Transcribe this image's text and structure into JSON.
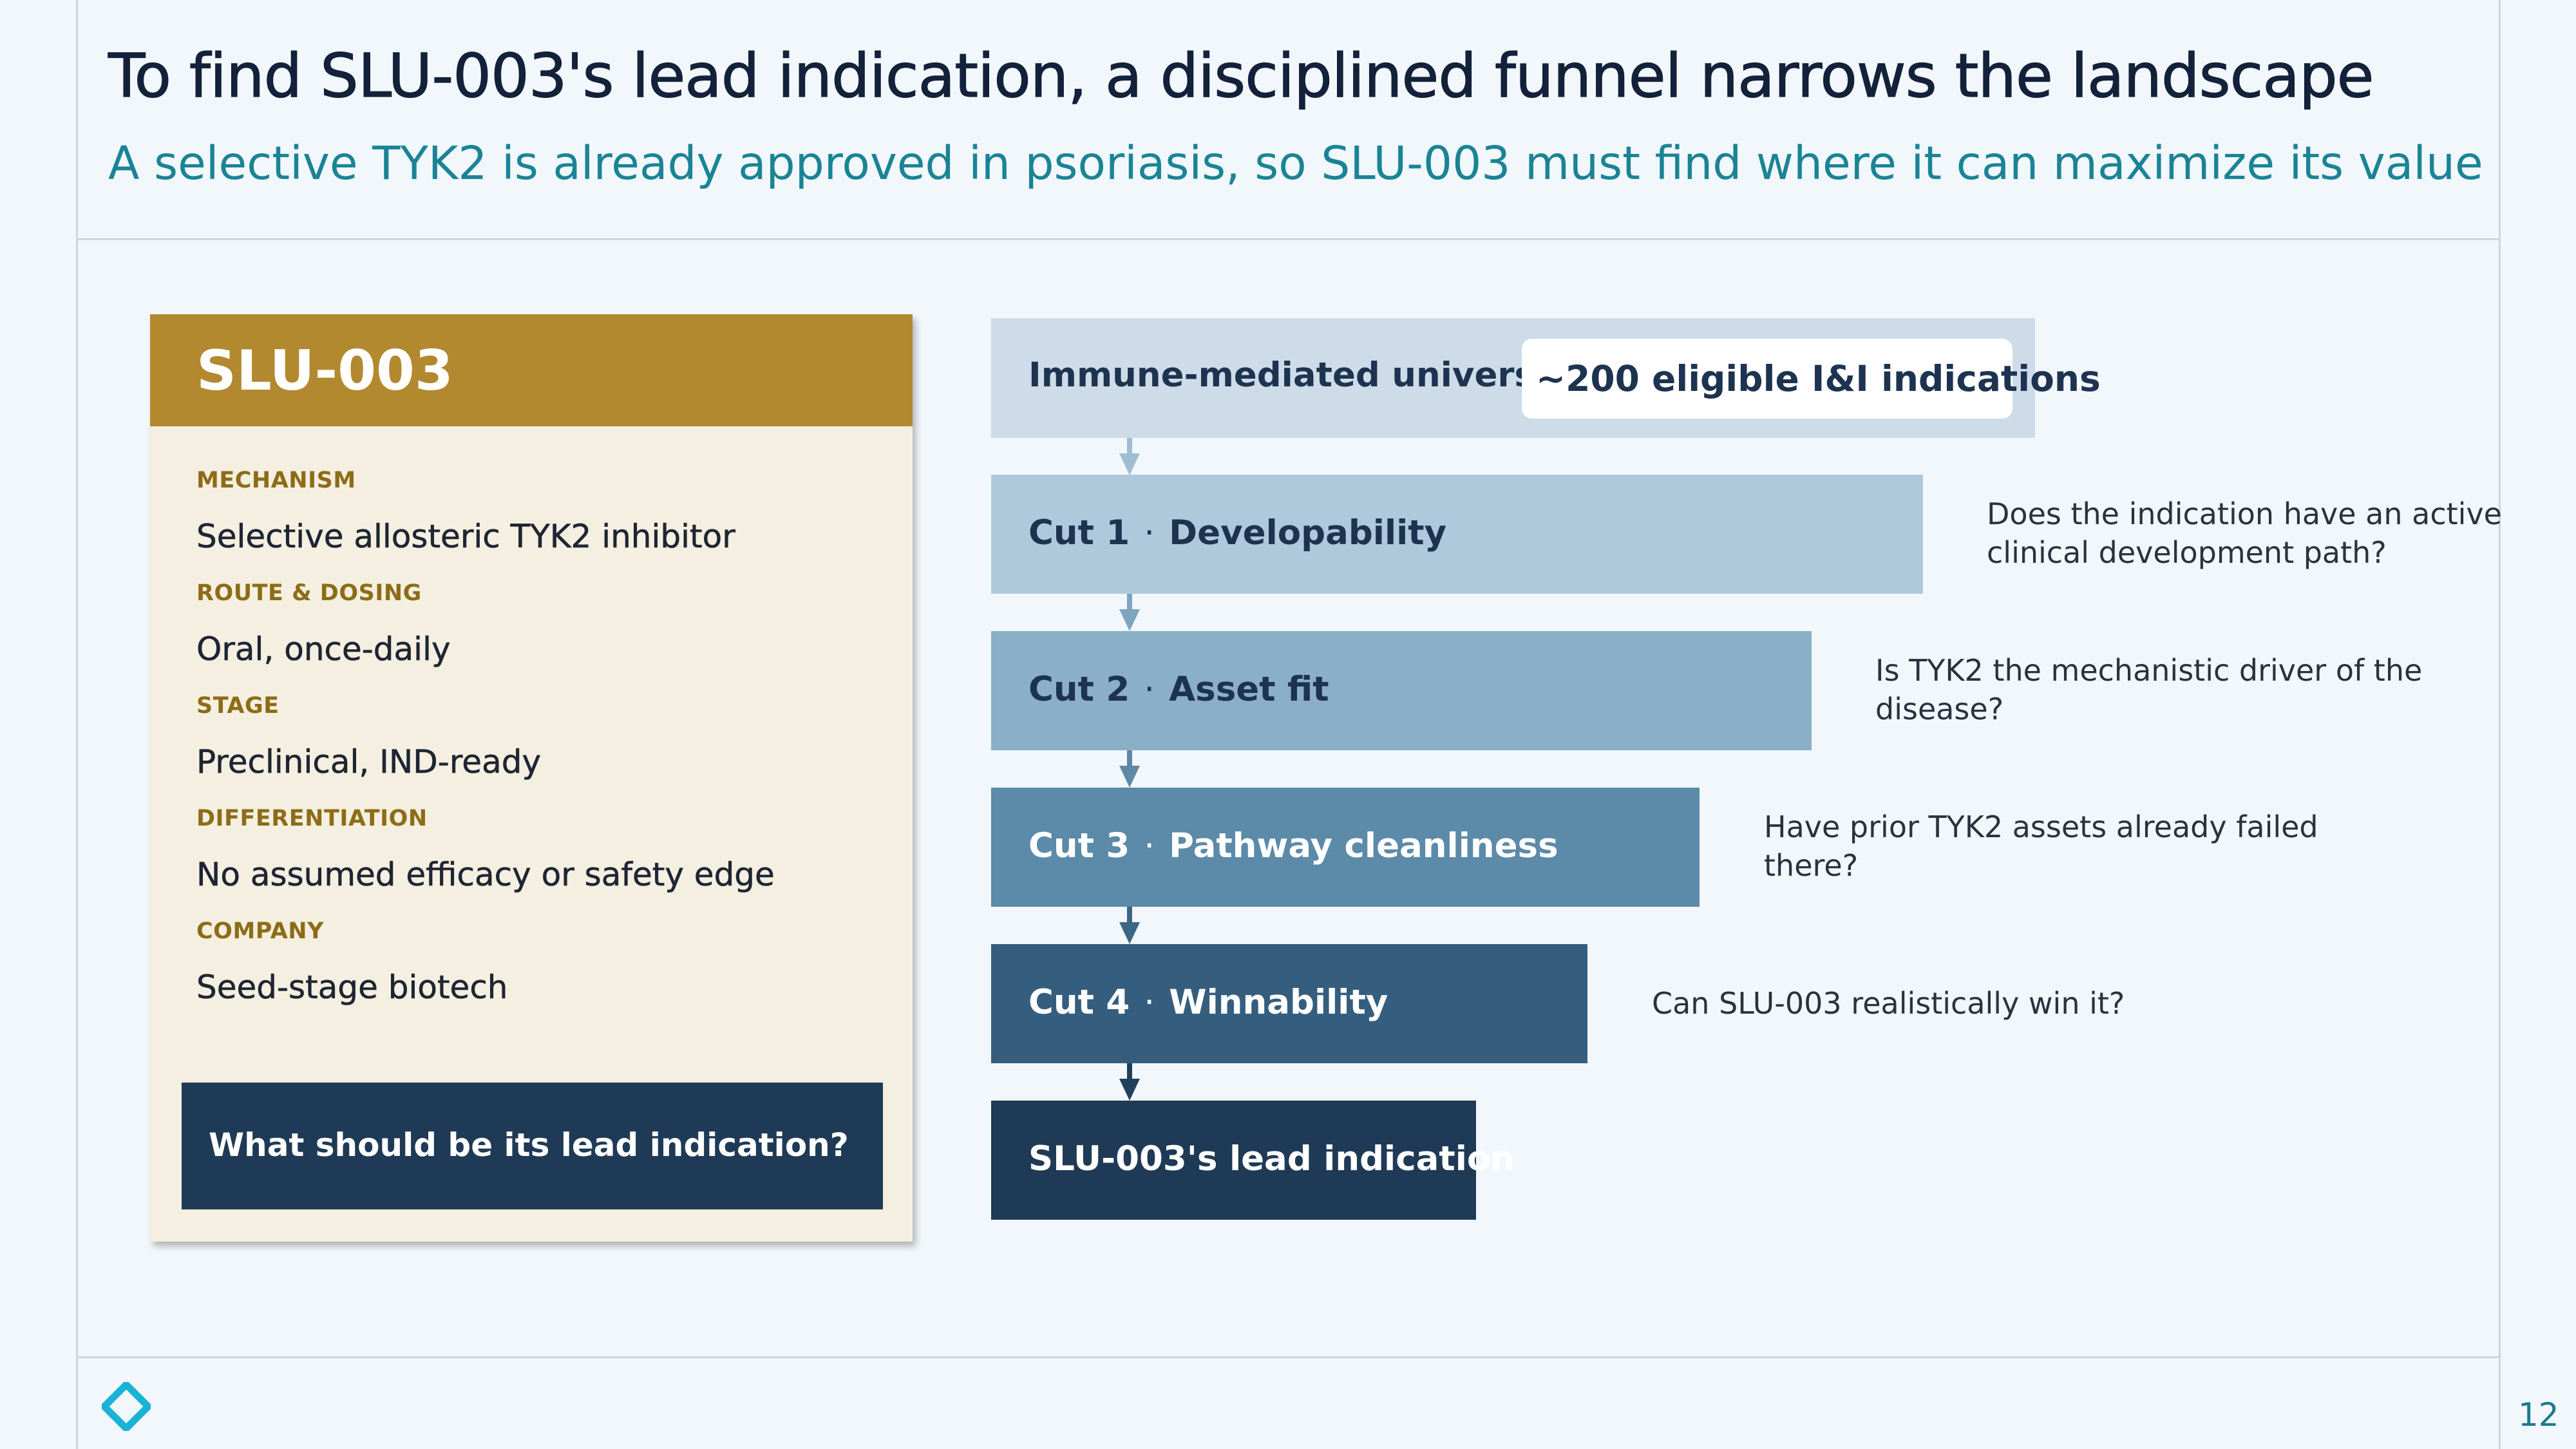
{
  "slide": {
    "title": "To find SLU-003's lead indication, a disciplined funnel narrows the landscape",
    "subtitle": "A selective TYK2 is already approved in psoriasis, so SLU-003 must find where it can maximize its value",
    "page_number": "12"
  },
  "asset": {
    "name": "SLU-003",
    "fields": [
      {
        "label": "MECHANISM",
        "value": "Selective allosteric TYK2 inhibitor"
      },
      {
        "label": "ROUTE & DOSING",
        "value": "Oral, once-daily"
      },
      {
        "label": "STAGE",
        "value": "Preclinical, IND-ready"
      },
      {
        "label": "DIFFERENTIATION",
        "value": "No assumed efficacy or safety edge"
      },
      {
        "label": "COMPANY",
        "value": "Seed-stage biotech"
      }
    ],
    "question": "What should be its lead indication?"
  },
  "funnel": {
    "universe": {
      "label": "Immune-mediated universe",
      "badge": "~200 eligible I&I indications"
    },
    "cuts": [
      {
        "number": "Cut 1",
        "separator": "·",
        "name": "Developability",
        "question_line1": "Does the indication have an active",
        "question_line2": "clinical development path?"
      },
      {
        "number": "Cut 2",
        "separator": "·",
        "name": "Asset fit",
        "question_line1": "Is TYK2 the mechanistic driver of the",
        "question_line2": "disease?"
      },
      {
        "number": "Cut 3",
        "separator": "·",
        "name": "Pathway cleanliness",
        "question_line1": "Have prior TYK2 assets already failed",
        "question_line2": "there?"
      },
      {
        "number": "Cut 4",
        "separator": "·",
        "name": "Winnability",
        "question_line1": "Can SLU-003 realistically win it?",
        "question_line2": ""
      }
    ],
    "outcome": "SLU-003's lead indication"
  },
  "colors": {
    "title": "#13213a",
    "subtitle": "#1a8496",
    "card_header": "#b2892f",
    "card_body": "#f4efe0",
    "field_label": "#8d6c17",
    "navy": "#1f3a56",
    "stage_universe": "#cddce8",
    "stage_cut1": "#afc9dc",
    "stage_cut2": "#8aafc6",
    "stage_cut3": "#5c8aa9",
    "stage_cut4": "#355e7e",
    "stage_outcome": "#1f3a56"
  }
}
